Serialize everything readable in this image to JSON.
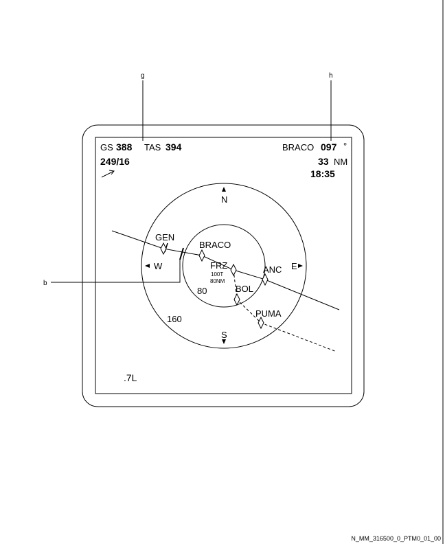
{
  "callouts": {
    "g": "g",
    "h": "h",
    "b": "b"
  },
  "header": {
    "gs_label": "GS",
    "gs_value": "388",
    "tas_label": "TAS",
    "tas_value": "394",
    "wind": "249/16",
    "waypoint_label": "BRACO",
    "bearing_value": "097",
    "bearing_unit": "°",
    "distance_value": "33",
    "distance_unit": "NM",
    "eta": "18:35"
  },
  "compass": {
    "north": "N",
    "south": "S",
    "east": "E",
    "west": "W"
  },
  "waypoints": {
    "gen": "GEN",
    "braco": "BRACO",
    "frz": "FRZ",
    "anc": "ANC",
    "bol": "BOL",
    "puma": "PUMA"
  },
  "frz_info": {
    "line1": "100T",
    "line2": "80NM"
  },
  "range_rings": {
    "inner": "80",
    "outer": "160"
  },
  "scale_label": ".7L",
  "doc_ref": "N_MM_316500_0_PTM0_01_00"
}
